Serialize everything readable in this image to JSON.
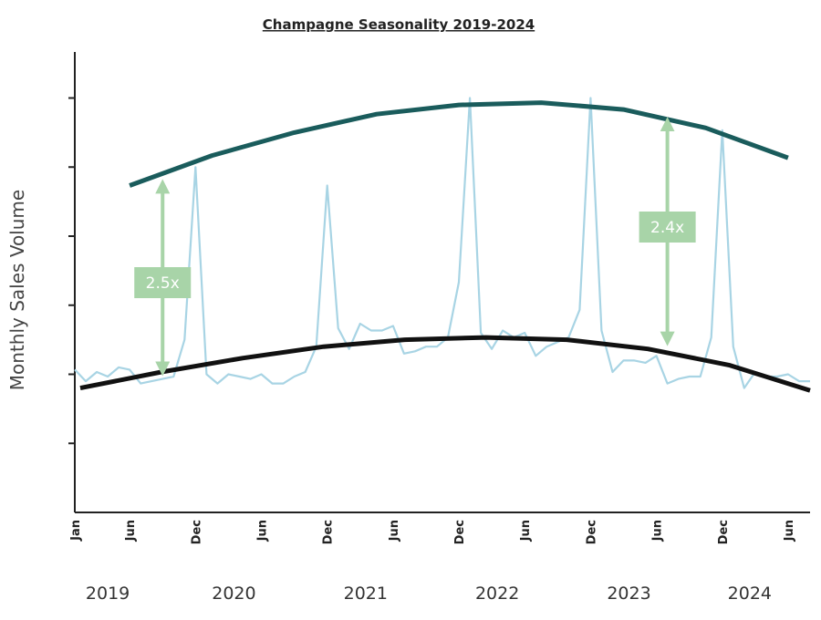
{
  "chart_data": {
    "type": "line",
    "title": "Champagne Seasonality 2019-2024",
    "ylabel": "Monthly Sales Volume",
    "xlabel": "",
    "ylim": [
      0,
      100
    ],
    "x_start": "2019-01",
    "month_tick_labels": [
      "Jan",
      "Jun",
      "Dec",
      "Jun",
      "Dec",
      "Jun",
      "Dec",
      "Jun",
      "Dec",
      "Jun",
      "Dec",
      "Jun"
    ],
    "month_tick_index": [
      0,
      5,
      11,
      17,
      23,
      29,
      35,
      41,
      47,
      53,
      59,
      65
    ],
    "year_labels": [
      "2019",
      "2020",
      "2021",
      "2022",
      "2023",
      "2024"
    ],
    "year_label_index": [
      3,
      14.5,
      26.5,
      38.5,
      50.5,
      61.5
    ],
    "y_ticks": [
      15,
      30,
      45,
      60,
      75,
      90
    ],
    "grid": false,
    "series": [
      {
        "role": "monthly",
        "color": "#a8d4e4",
        "values": [
          31,
          28.5,
          30.5,
          29.5,
          31.5,
          31,
          28,
          28.5,
          29,
          29.5,
          37.5,
          75,
          30,
          28,
          30,
          29.5,
          29,
          30,
          28,
          28,
          29.5,
          30.5,
          36,
          71,
          40,
          35.5,
          41,
          39.5,
          39.5,
          40.5,
          34.5,
          35,
          36,
          36,
          38,
          50,
          90,
          39,
          35.5,
          39.5,
          38,
          39,
          34,
          36,
          37,
          38,
          44,
          90,
          39.5,
          30.5,
          33,
          33,
          32.5,
          34,
          28,
          29,
          29.5,
          29.5,
          38,
          83,
          36,
          27,
          30.5,
          29.5,
          29.5,
          30,
          28.5,
          28.5
        ]
      },
      {
        "role": "upper-trend",
        "color": "#1a5c5c",
        "values": [
          71,
          77.5,
          82.5,
          86.5,
          88.5,
          89,
          87.5,
          83.5,
          77
        ]
      },
      {
        "role": "lower-trend",
        "color": "#111111",
        "values": [
          27,
          30.5,
          33.5,
          36,
          37.5,
          38,
          37.5,
          35.5,
          32,
          26.5
        ]
      }
    ],
    "annotations": [
      {
        "label": "2.5x",
        "color": "#a8d4a8"
      },
      {
        "label": "2.4x",
        "color": "#a8d4a8"
      }
    ]
  }
}
